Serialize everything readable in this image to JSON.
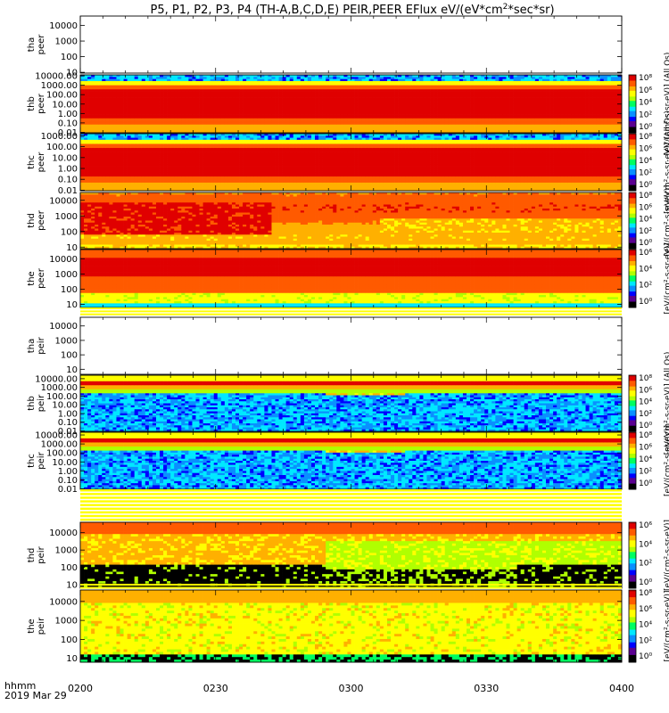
{
  "chart_data": {
    "type": "heatmap",
    "title": "P5, P1, P2, P3, P4 (TH-A,B,C,D,E) PEIR,PEER EFlux eV/(eV*cm",
    "title_sup": "2",
    "title_end": "*sec*sr)",
    "x_axis": {
      "ticks": [
        "0200",
        "0230",
        "0300",
        "0330",
        "0400"
      ],
      "range_hhmm": [
        "0200",
        "0400"
      ],
      "label_line1": "hhmm",
      "label_line2": "2019 Mar 29"
    },
    "colorbar_scale": "log",
    "panels": [
      {
        "id": "tha-peer",
        "label": [
          "tha",
          "peer"
        ],
        "empty": true,
        "y_ticks": [
          "10000",
          "1000",
          "100",
          "10"
        ],
        "y_log_range": [
          0.95,
          4.6
        ],
        "colorbar": null
      },
      {
        "id": "thb-peer",
        "label": [
          "thb",
          "peer"
        ],
        "empty": false,
        "pattern": "banded-peer",
        "y_ticks": [
          "10000.00",
          "1000.00",
          "100.00",
          "10.00",
          "1.00",
          "0.10",
          "0.01"
        ],
        "y_log_range": [
          -2.05,
          4.1
        ],
        "colorbar": {
          "ticks": [
            "10⁸",
            "10⁶",
            "10⁴",
            "10²",
            "10⁰"
          ],
          "units": "[eV/(cm²-s-sr-eV)] (All Qs)"
        }
      },
      {
        "id": "thc-peer",
        "label": [
          "thc",
          "peer"
        ],
        "empty": false,
        "pattern": "banded-peer",
        "y_ticks": [
          "1000.00",
          "100.00",
          "10.00",
          "1.00",
          "0.10",
          "0.01"
        ],
        "y_log_range": [
          -2.05,
          3.2
        ],
        "colorbar": {
          "ticks": [
            "10⁸",
            "10⁶",
            "10⁴",
            "10²",
            "10⁰"
          ],
          "units": "[eV/(cm²-s-sr-eV)] (All Qs)"
        }
      },
      {
        "id": "thd-peer",
        "label": [
          "thd",
          "peer"
        ],
        "empty": false,
        "pattern": "thd-peer",
        "y_ticks": [
          "10000",
          "1000",
          "100",
          "10"
        ],
        "y_log_range": [
          0.9,
          4.5
        ],
        "colorbar": {
          "ticks": [
            "10⁸",
            "10⁶",
            "10⁴",
            "10²",
            "10⁰"
          ],
          "units": "[eV/(cm²-s-sr-eV)]"
        }
      },
      {
        "id": "the-peer",
        "label": [
          "the",
          "peer"
        ],
        "empty": false,
        "pattern": "the-peer",
        "y_ticks": [
          "10000",
          "1000",
          "100",
          "10"
        ],
        "y_log_range": [
          0.8,
          4.6
        ],
        "colorbar": {
          "ticks": [
            "10⁶",
            "10⁴",
            "10²",
            "10⁰"
          ],
          "units": "[eV/(cm²-s-sr-eV)]"
        }
      },
      {
        "id": "tha-peir",
        "label": [
          "tha",
          "peir"
        ],
        "empty": true,
        "y_ticks": [
          "10000",
          "1000",
          "100",
          "10"
        ],
        "y_log_range": [
          0.65,
          4.6
        ],
        "colorbar": null
      },
      {
        "id": "thb-peir",
        "label": [
          "thb",
          "peir"
        ],
        "empty": false,
        "pattern": "banded-peir",
        "y_ticks": [
          "10000.00",
          "1000.00",
          "100.00",
          "10.00",
          "1.00",
          "0.10",
          "0.01"
        ],
        "y_log_range": [
          -2.05,
          4.4
        ],
        "colorbar": {
          "ticks": [
            "10⁸",
            "10⁶",
            "10⁴",
            "10²",
            "10⁰"
          ],
          "units": "[eV/(cm²-s-sr-eV)] (All Qs)"
        }
      },
      {
        "id": "thc-peir",
        "label": [
          "thc",
          "peir"
        ],
        "empty": false,
        "pattern": "banded-peir",
        "y_ticks": [
          "10000.00",
          "1000.00",
          "100.00",
          "10.00",
          "1.00",
          "0.10",
          "0.01"
        ],
        "y_log_range": [
          -2.05,
          4.3
        ],
        "colorbar": {
          "ticks": [
            "10⁸",
            "10⁶",
            "10⁴",
            "10²",
            "10⁰"
          ],
          "units": "[eV/(cm²-s-sr-eV)]"
        }
      },
      {
        "id": "thd-peir",
        "label": [
          "thd",
          "peir"
        ],
        "empty": false,
        "pattern": "thd-peir",
        "y_ticks": [
          "10000",
          "1000",
          "100",
          "10"
        ],
        "y_log_range": [
          0.8,
          4.6
        ],
        "colorbar": {
          "ticks": [
            "10⁶",
            "10⁴",
            "10²",
            "10⁰"
          ],
          "units": "[eV/(cm²-s-sr-eV)]"
        }
      },
      {
        "id": "the-peir",
        "label": [
          "the",
          "peir"
        ],
        "empty": false,
        "pattern": "the-peir",
        "y_ticks": [
          "10000",
          "1000",
          "100",
          "10"
        ],
        "y_log_range": [
          0.8,
          4.6
        ],
        "colorbar": {
          "ticks": [
            "10⁸",
            "10⁶",
            "10⁴",
            "10²",
            "10⁰"
          ],
          "units": "[eV/(cm²-s-sr-eV)]"
        }
      }
    ],
    "colormap": [
      "#000000",
      "#5a0090",
      "#0000ff",
      "#0a8fff",
      "#00e8ff",
      "#00ff60",
      "#b0ff00",
      "#ffff00",
      "#ffb000",
      "#ff5a00",
      "#e00000",
      "#c00000"
    ]
  }
}
